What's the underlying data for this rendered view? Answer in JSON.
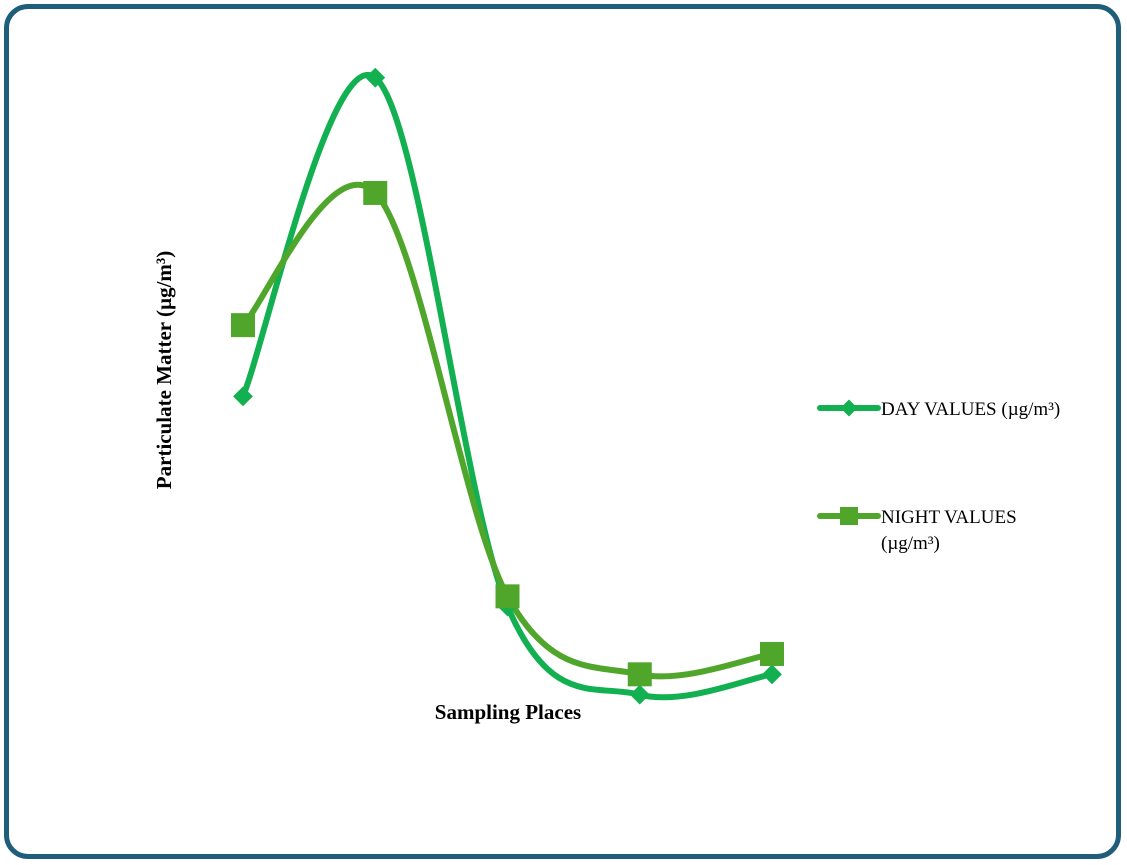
{
  "chart_data": {
    "type": "line",
    "smooth": true,
    "title": "",
    "xlabel": "Sampling Places",
    "ylabel": "Particulate Matter (µg/m³)",
    "x": [
      1,
      2,
      3,
      4,
      5
    ],
    "ylim": [
      0,
      100
    ],
    "grid": false,
    "legend_position": "right",
    "series": [
      {
        "name": "DAY VALUES (µg/m³)",
        "marker": "diamond",
        "color": "#12b050",
        "values": [
          47.0,
          94.0,
          16.0,
          3.0,
          6.0
        ]
      },
      {
        "name": "NIGHT VALUES (µg/m³)",
        "marker": "square",
        "color": "#4fa62a",
        "values": [
          57.5,
          77.0,
          17.5,
          6.0,
          9.0
        ]
      }
    ]
  }
}
